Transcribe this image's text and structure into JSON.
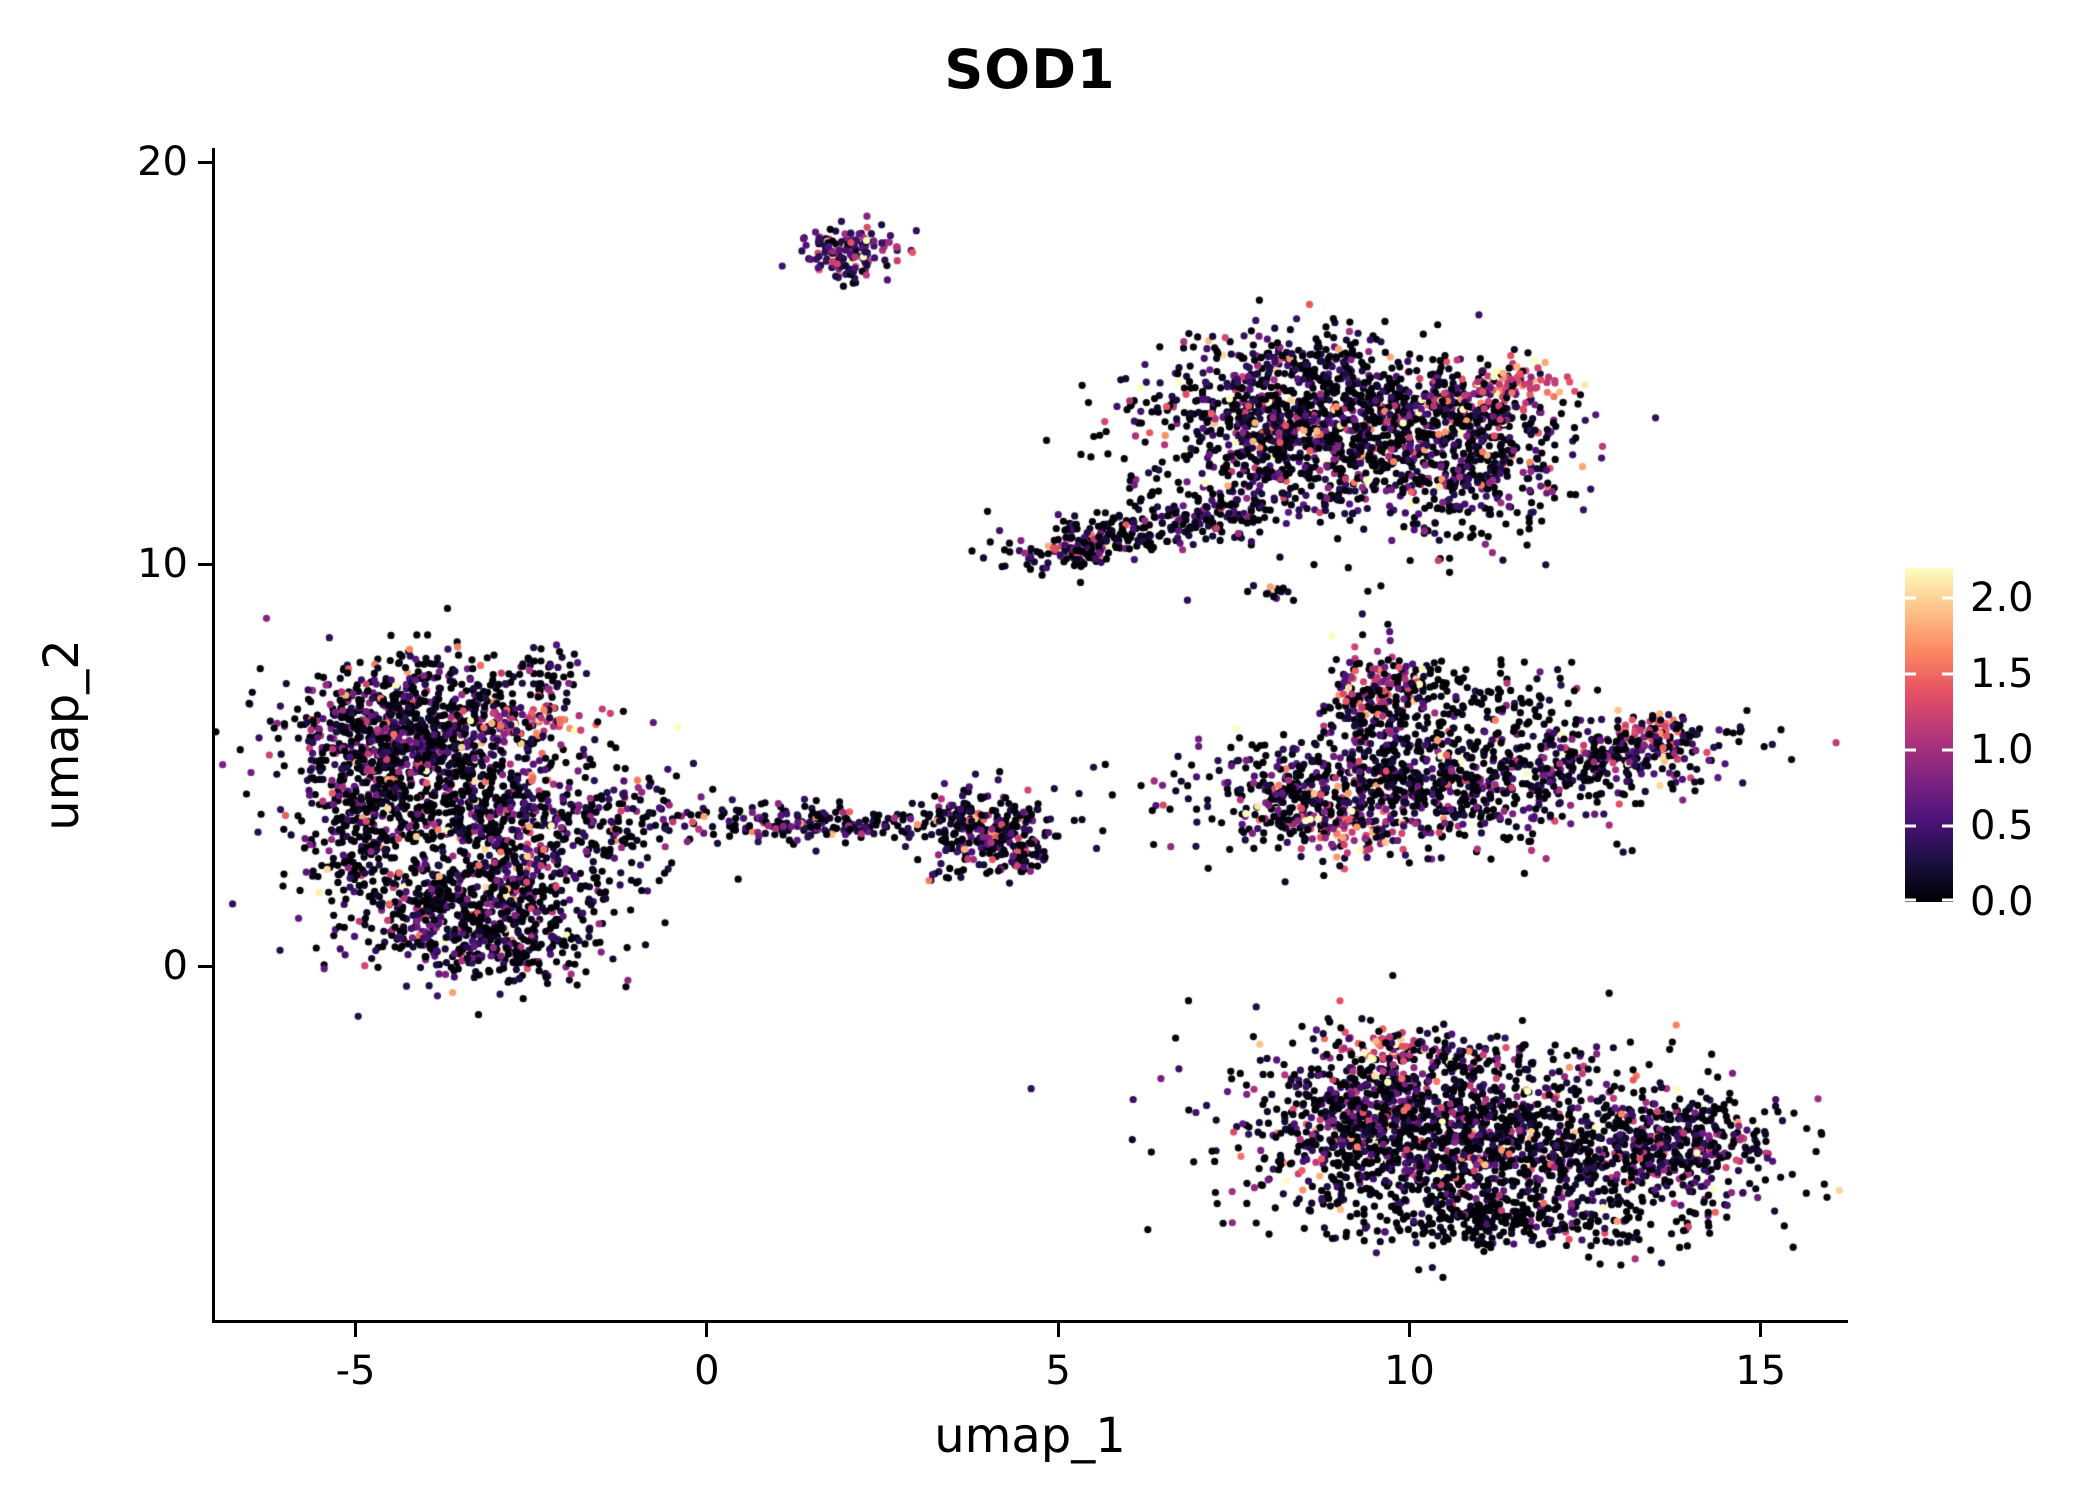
{
  "chart_data": {
    "type": "scatter",
    "title": "SOD1",
    "xlabel": "umap_1",
    "ylabel": "umap_2",
    "xlim": [
      -7.0,
      16.2
    ],
    "ylim": [
      -8.8,
      20.3
    ],
    "grid": false,
    "background": "#ffffff",
    "point_radius_px": 3.6,
    "seed": 1337,
    "x_ticks": [
      {
        "value": -5,
        "label": "-5"
      },
      {
        "value": 0,
        "label": "0"
      },
      {
        "value": 5,
        "label": "5"
      },
      {
        "value": 10,
        "label": "10"
      },
      {
        "value": 15,
        "label": "15"
      }
    ],
    "y_ticks": [
      {
        "value": 0,
        "label": "0"
      },
      {
        "value": 10,
        "label": "10"
      },
      {
        "value": 20,
        "label": "20"
      }
    ],
    "legend": {
      "type": "colorbar",
      "position": "right",
      "vmin": 0.0,
      "vmax": 2.2,
      "colormap": "magma",
      "colormap_anchors": [
        "#000004",
        "#1c1044",
        "#4f127b",
        "#812581",
        "#b5367a",
        "#e55064",
        "#fb8761",
        "#fec287",
        "#fcfdbf"
      ],
      "ticks": [
        {
          "value": 2.0,
          "label": "2.0"
        },
        {
          "value": 1.5,
          "label": "1.5"
        },
        {
          "value": 1.0,
          "label": "1.0"
        },
        {
          "value": 0.5,
          "label": "0.5"
        },
        {
          "value": 0.0,
          "label": "0.0"
        }
      ]
    },
    "clusters": [
      {
        "name": "top-small-core",
        "cx": 2.05,
        "cy": 17.85,
        "sx": 0.38,
        "sy": 0.26,
        "rot": -10,
        "n": 130,
        "expr": {
          "z": 0.18,
          "s": 0.55,
          "b": 0.25
        }
      },
      {
        "name": "top-small-tail",
        "cx": 2.0,
        "cy": 17.25,
        "sx": 0.16,
        "sy": 0.14,
        "rot": 0,
        "n": 14,
        "expr": {
          "z": 0.3,
          "s": 0.5,
          "b": 0
        }
      },
      {
        "name": "topright-main",
        "cx": 8.7,
        "cy": 13.3,
        "sx": 1.25,
        "sy": 1.0,
        "rot": 0,
        "n": 1300,
        "expr": {
          "z": 0.38,
          "s": 0.55,
          "b": 0
        }
      },
      {
        "name": "topright-top",
        "cx": 8.4,
        "cy": 15.0,
        "sx": 0.85,
        "sy": 0.35,
        "rot": 0,
        "n": 150,
        "expr": {
          "z": 0.38,
          "s": 0.55,
          "b": 0
        }
      },
      {
        "name": "topright-right",
        "cx": 10.9,
        "cy": 12.4,
        "sx": 0.75,
        "sy": 1.0,
        "rot": 0,
        "n": 320,
        "expr": {
          "z": 0.45,
          "s": 0.5,
          "b": 0
        }
      },
      {
        "name": "topright-right-upper",
        "cx": 11.0,
        "cy": 13.8,
        "sx": 0.5,
        "sy": 0.45,
        "rot": 0,
        "n": 120,
        "expr": {
          "z": 0.3,
          "s": 0.6,
          "b": 0
        }
      },
      {
        "name": "topright-orange-patch",
        "cx": 11.35,
        "cy": 14.45,
        "sx": 0.45,
        "sy": 0.3,
        "rot": 10,
        "n": 90,
        "expr": {
          "z": 0.05,
          "s": 0.35,
          "b": 1.1
        }
      },
      {
        "name": "topright-arm",
        "cx": 6.3,
        "cy": 10.9,
        "sx": 1.05,
        "sy": 0.3,
        "rot": 17,
        "n": 260,
        "expr": {
          "z": 0.45,
          "s": 0.45,
          "b": 0
        }
      },
      {
        "name": "topright-arm-end",
        "cx": 5.25,
        "cy": 10.3,
        "sx": 0.33,
        "sy": 0.18,
        "rot": 10,
        "n": 70,
        "expr": {
          "z": 0.4,
          "s": 0.5,
          "b": 0
        }
      },
      {
        "name": "tiny-mid",
        "cx": 8.1,
        "cy": 9.3,
        "sx": 0.15,
        "sy": 0.15,
        "rot": 0,
        "n": 16,
        "expr": {
          "z": 0.5,
          "s": 0.4,
          "b": 0
        }
      },
      {
        "name": "left-upper",
        "cx": -4.0,
        "cy": 5.9,
        "sx": 0.95,
        "sy": 0.85,
        "rot": 0,
        "n": 850,
        "expr": {
          "z": 0.4,
          "s": 0.5,
          "b": 0
        }
      },
      {
        "name": "left-west-edge",
        "cx": -4.85,
        "cy": 4.3,
        "sx": 0.4,
        "sy": 1.25,
        "rot": 0,
        "n": 280,
        "expr": {
          "z": 0.4,
          "s": 0.5,
          "b": 0
        }
      },
      {
        "name": "left-mid",
        "cx": -3.6,
        "cy": 3.9,
        "sx": 1.0,
        "sy": 0.6,
        "rot": 0,
        "n": 350,
        "expr": {
          "z": 0.42,
          "s": 0.5,
          "b": 0
        }
      },
      {
        "name": "left-lower",
        "cx": -3.3,
        "cy": 1.7,
        "sx": 1.05,
        "sy": 0.95,
        "rot": 0,
        "n": 850,
        "expr": {
          "z": 0.4,
          "s": 0.5,
          "b": 0
        }
      },
      {
        "name": "left-bottom-tail",
        "cx": -3.1,
        "cy": 0.35,
        "sx": 0.75,
        "sy": 0.3,
        "rot": -5,
        "n": 130,
        "expr": {
          "z": 0.45,
          "s": 0.45,
          "b": 0
        }
      },
      {
        "name": "left-right-scatter",
        "cx": -1.7,
        "cy": 3.7,
        "sx": 0.75,
        "sy": 0.85,
        "rot": 0,
        "n": 130,
        "expr": {
          "z": 0.45,
          "s": 0.5,
          "b": 0
        }
      },
      {
        "name": "left-stragglers",
        "cx": -0.8,
        "cy": 3.4,
        "sx": 0.35,
        "sy": 0.6,
        "rot": 0,
        "n": 35,
        "expr": {
          "z": 0.4,
          "s": 0.5,
          "b": 0
        }
      },
      {
        "name": "left-top-nub",
        "cx": -2.35,
        "cy": 7.3,
        "sx": 0.28,
        "sy": 0.32,
        "rot": 0,
        "n": 45,
        "expr": {
          "z": 0.3,
          "s": 0.55,
          "b": 0
        }
      },
      {
        "name": "left-orange-patch",
        "cx": -2.55,
        "cy": 6.1,
        "sx": 0.45,
        "sy": 0.25,
        "rot": 0,
        "n": 60,
        "expr": {
          "z": 0.05,
          "s": 0.4,
          "b": 1.0
        }
      },
      {
        "name": "left-orange-west",
        "cx": -4.75,
        "cy": 5.6,
        "sx": 0.3,
        "sy": 0.35,
        "rot": 0,
        "n": 25,
        "expr": {
          "z": 0.1,
          "s": 0.4,
          "b": 0.9
        }
      },
      {
        "name": "mid-band",
        "cx": 1.5,
        "cy": 3.55,
        "sx": 0.95,
        "sy": 0.22,
        "rot": 0,
        "n": 180,
        "expr": {
          "z": 0.3,
          "s": 0.55,
          "b": 0.05
        }
      },
      {
        "name": "mid-left-dot",
        "cx": 0.05,
        "cy": 3.85,
        "sx": 0.12,
        "sy": 0.1,
        "rot": 0,
        "n": 7,
        "expr": {
          "z": 0.4,
          "s": 0.5,
          "b": 0
        }
      },
      {
        "name": "mid-right-blob",
        "cx": 3.9,
        "cy": 3.35,
        "sx": 0.5,
        "sy": 0.5,
        "rot": 0,
        "n": 270,
        "expr": {
          "z": 0.35,
          "s": 0.55,
          "b": 0
        }
      },
      {
        "name": "mid-right-tail",
        "cx": 4.45,
        "cy": 2.7,
        "sx": 0.2,
        "sy": 0.25,
        "rot": 0,
        "n": 40,
        "expr": {
          "z": 0.35,
          "s": 0.5,
          "b": 0
        }
      },
      {
        "name": "mid-below-dots",
        "cx": 3.3,
        "cy": 2.35,
        "sx": 0.16,
        "sy": 0.12,
        "rot": 0,
        "n": 10,
        "expr": {
          "z": 0.3,
          "s": 0.6,
          "b": 0
        }
      },
      {
        "name": "right-main",
        "cx": 9.9,
        "cy": 4.4,
        "sx": 1.5,
        "sy": 0.75,
        "rot": 0,
        "n": 800,
        "expr": {
          "z": 0.4,
          "s": 0.5,
          "b": 0
        }
      },
      {
        "name": "right-arm-up",
        "cx": 9.6,
        "cy": 6.4,
        "sx": 0.45,
        "sy": 0.75,
        "rot": 0,
        "n": 190,
        "expr": {
          "z": 0.35,
          "s": 0.55,
          "b": 0
        }
      },
      {
        "name": "right-arm-orange",
        "cx": 9.55,
        "cy": 7.0,
        "sx": 0.28,
        "sy": 0.38,
        "rot": 0,
        "n": 60,
        "expr": {
          "z": 0.08,
          "s": 0.5,
          "b": 0.9
        }
      },
      {
        "name": "right-top-black",
        "cx": 10.9,
        "cy": 6.6,
        "sx": 1.0,
        "sy": 0.5,
        "rot": -8,
        "n": 140,
        "expr": {
          "z": 0.75,
          "s": 0.3,
          "b": 0
        }
      },
      {
        "name": "right-tail",
        "cx": 12.7,
        "cy": 5.2,
        "sx": 1.0,
        "sy": 0.4,
        "rot": 14,
        "n": 350,
        "expr": {
          "z": 0.4,
          "s": 0.55,
          "b": 0
        }
      },
      {
        "name": "right-tail-tip",
        "cx": 13.55,
        "cy": 5.85,
        "sx": 0.2,
        "sy": 0.15,
        "rot": 0,
        "n": 25,
        "expr": {
          "z": 0.08,
          "s": 0.4,
          "b": 1.0
        }
      },
      {
        "name": "right-bottom-orange",
        "cx": 9.0,
        "cy": 3.3,
        "sx": 0.5,
        "sy": 0.28,
        "rot": 0,
        "n": 70,
        "expr": {
          "z": 0.1,
          "s": 0.5,
          "b": 0.8
        }
      },
      {
        "name": "right-west-nub",
        "cx": 8.3,
        "cy": 4.0,
        "sx": 0.3,
        "sy": 0.5,
        "rot": 0,
        "n": 80,
        "expr": {
          "z": 0.4,
          "s": 0.5,
          "b": 0
        }
      },
      {
        "name": "bottom-main",
        "cx": 11.2,
        "cy": -4.3,
        "sx": 1.7,
        "sy": 1.05,
        "rot": -6,
        "n": 1400,
        "expr": {
          "z": 0.42,
          "s": 0.5,
          "b": 0
        }
      },
      {
        "name": "bottom-left",
        "cx": 9.4,
        "cy": -3.7,
        "sx": 0.7,
        "sy": 0.95,
        "rot": 0,
        "n": 400,
        "expr": {
          "z": 0.35,
          "s": 0.55,
          "b": 0
        }
      },
      {
        "name": "bottom-right",
        "cx": 13.8,
        "cy": -4.5,
        "sx": 0.75,
        "sy": 0.7,
        "rot": -15,
        "n": 330,
        "expr": {
          "z": 0.45,
          "s": 0.5,
          "b": 0
        }
      },
      {
        "name": "bottom-tail",
        "cx": 11.1,
        "cy": -6.3,
        "sx": 1.3,
        "sy": 0.4,
        "rot": -4,
        "n": 280,
        "expr": {
          "z": 0.7,
          "s": 0.3,
          "b": 0
        }
      },
      {
        "name": "bottom-top-orange",
        "cx": 9.65,
        "cy": -2.0,
        "sx": 0.3,
        "sy": 0.2,
        "rot": 0,
        "n": 35,
        "expr": {
          "z": 0.05,
          "s": 0.4,
          "b": 1.0
        }
      },
      {
        "name": "bottom-top-band",
        "cx": 10.5,
        "cy": -2.2,
        "sx": 0.8,
        "sy": 0.3,
        "rot": 0,
        "n": 90,
        "expr": {
          "z": 0.45,
          "s": 0.5,
          "b": 0
        }
      }
    ]
  }
}
